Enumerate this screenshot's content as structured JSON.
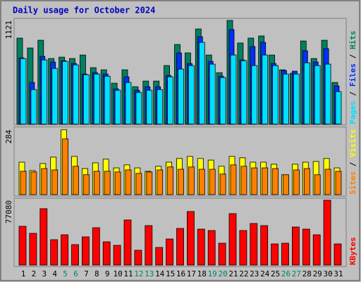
{
  "chart_data": [
    {
      "type": "bar",
      "title": "Daily usage for October 2024",
      "ylim": [
        0,
        1121
      ],
      "yticks": [
        1121
      ],
      "legend_separator": " / ",
      "series": [
        {
          "name": "Hits",
          "color": "#008060",
          "values": [
            930,
            823,
            907,
            709,
            724,
            709,
            747,
            610,
            587,
            442,
            587,
            404,
            465,
            465,
            633,
            861,
            770,
            1029,
            747,
            556,
            1121,
            877,
            930,
            953,
            747,
            587,
            549,
            899,
            709,
            907,
            450
          ]
        },
        {
          "name": "Files",
          "color": "#0030ff",
          "values": [
            716,
            450,
            732,
            671,
            686,
            655,
            541,
            557,
            541,
            381,
            511,
            366,
            404,
            404,
            526,
            770,
            655,
            945,
            678,
            518,
            1022,
            694,
            839,
            884,
            655,
            579,
            572,
            793,
            671,
            816,
            412
          ]
        },
        {
          "name": "Pages",
          "color": "#00e0ff",
          "values": [
            709,
            373,
            694,
            602,
            678,
            640,
            534,
            541,
            518,
            366,
            450,
            343,
            366,
            373,
            511,
            595,
            633,
            884,
            648,
            503,
            747,
            686,
            633,
            747,
            633,
            541,
            541,
            663,
            633,
            648,
            351
          ]
        }
      ]
    },
    {
      "type": "bar",
      "ylim": [
        0,
        284
      ],
      "yticks": [
        284
      ],
      "legend_separator": " / ",
      "series": [
        {
          "name": "Visits",
          "color": "#ffff00",
          "values": [
            142,
            105,
            136,
            164,
            284,
            167,
            114,
            139,
            155,
            117,
            130,
            117,
            102,
            124,
            142,
            158,
            167,
            158,
            151,
            124,
            167,
            161,
            142,
            142,
            133,
            87,
            133,
            142,
            145,
            158,
            117
          ]
        },
        {
          "name": "Sites",
          "color": "#ff8000",
          "values": [
            102,
            99,
            114,
            108,
            244,
            124,
            87,
            102,
            102,
            99,
            108,
            93,
            99,
            108,
            121,
            111,
            121,
            111,
            111,
            90,
            130,
            124,
            117,
            117,
            114,
            87,
            108,
            114,
            87,
            111,
            102
          ]
        }
      ]
    },
    {
      "type": "bar",
      "ylim": [
        0,
        77080
      ],
      "yticks": [
        77080
      ],
      "categories": [
        "1",
        "2",
        "3",
        "4",
        "5",
        "6",
        "7",
        "8",
        "9",
        "10",
        "11",
        "12",
        "13",
        "14",
        "15",
        "16",
        "17",
        "18",
        "19",
        "20",
        "21",
        "22",
        "23",
        "24",
        "25",
        "26",
        "27",
        "28",
        "29",
        "30",
        "31"
      ],
      "category_colors": [
        "#000000",
        "#000000",
        "#000000",
        "#000000",
        "#00806f",
        "#00806f",
        "#000000",
        "#000000",
        "#000000",
        "#000000",
        "#000000",
        "#00806f",
        "#00806f",
        "#000000",
        "#000000",
        "#000000",
        "#000000",
        "#000000",
        "#00806f",
        "#00806f",
        "#000000",
        "#000000",
        "#000000",
        "#000000",
        "#000000",
        "#00806f",
        "#00806f",
        "#000000",
        "#000000",
        "#000000",
        "#000000"
      ],
      "series": [
        {
          "name": "KBytes",
          "color": "#ff0000",
          "values": [
            46090,
            37710,
            67040,
            30170,
            36030,
            24300,
            33520,
            44410,
            27650,
            23460,
            53620,
            17600,
            46920,
            20950,
            31000,
            43570,
            63690,
            42740,
            41060,
            25980,
            61170,
            41060,
            49440,
            46920,
            25140,
            25980,
            45250,
            42740,
            36030,
            77080,
            25140
          ]
        }
      ]
    }
  ]
}
